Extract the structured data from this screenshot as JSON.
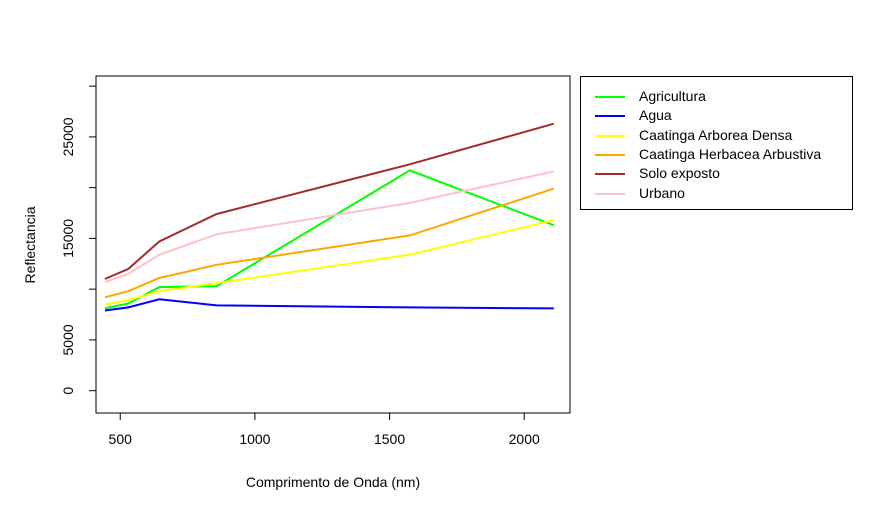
{
  "chart_data": {
    "type": "line",
    "title": "",
    "xlabel": "Comprimento de Onda (nm)",
    "ylabel": "Reflectancia",
    "xlim": [
      410,
      2170
    ],
    "ylim": [
      -2200,
      31000
    ],
    "xticks": [
      500,
      1000,
      1500,
      2000
    ],
    "xtick_labels": [
      "500",
      "1000",
      "1500",
      "2000"
    ],
    "yticks": [
      0,
      5000,
      15000,
      25000
    ],
    "ytick_labels": [
      "0",
      "5000",
      "15000",
      "25000"
    ],
    "grid": false,
    "legend_position": "outside-right",
    "x": [
      443,
      530,
      645,
      858,
      1575,
      2110
    ],
    "series": [
      {
        "name": "Agricultura",
        "color": "#00ff00",
        "values": [
          8100,
          8600,
          10200,
          10300,
          21700,
          16300
        ]
      },
      {
        "name": "Agua",
        "color": "#0000ff",
        "values": [
          7900,
          8200,
          9000,
          8400,
          8200,
          8100
        ]
      },
      {
        "name": "Caatinga Arborea Densa",
        "color": "#ffff00",
        "values": [
          8500,
          8900,
          9800,
          10600,
          13400,
          16800
        ]
      },
      {
        "name": "Caatinga Herbacea Arbustiva",
        "color": "#ffa500",
        "values": [
          9200,
          9800,
          11100,
          12400,
          15300,
          19900
        ]
      },
      {
        "name": "Solo exposto",
        "color": "#a52a2a",
        "values": [
          11000,
          12000,
          14700,
          17400,
          22300,
          26300
        ]
      },
      {
        "name": "Urbano",
        "color": "#ffc0cb",
        "values": [
          10700,
          11500,
          13400,
          15400,
          18500,
          21600
        ]
      }
    ]
  }
}
